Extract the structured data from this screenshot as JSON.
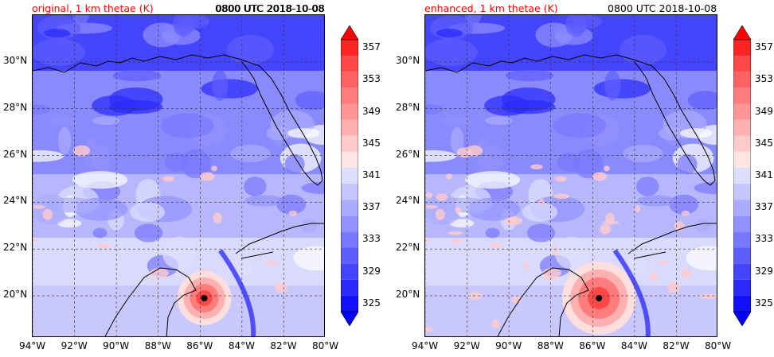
{
  "panels": [
    {
      "title": "original, 1 km thetae (K)",
      "time": "0800 UTC 2018-10-08",
      "storm_center": {
        "lon": -85.8,
        "lat": 19.9
      }
    },
    {
      "title": "enhanced, 1 km thetae (K)",
      "time": "0800 UTC 2018-10-08",
      "storm_center": {
        "lon": -85.7,
        "lat": 19.9
      }
    }
  ],
  "map_extent": {
    "lon_min": -94,
    "lon_max": -80,
    "lat_min": 18.2,
    "lat_max": 32.0
  },
  "lon_ticks": [
    "94°W",
    "92°W",
    "90°W",
    "88°W",
    "86°W",
    "84°W",
    "82°W",
    "80°W"
  ],
  "lon_values": [
    -94,
    -92,
    -90,
    -88,
    -86,
    -84,
    -82,
    -80
  ],
  "lat_ticks": [
    "20°N",
    "22°N",
    "24°N",
    "26°N",
    "28°N",
    "30°N"
  ],
  "lat_values": [
    20,
    22,
    24,
    26,
    28,
    30
  ],
  "colorbar": {
    "labels": [
      "325",
      "329",
      "333",
      "337",
      "341",
      "345",
      "349",
      "353",
      "357"
    ],
    "levels": [
      325,
      327,
      329,
      331,
      333,
      335,
      337,
      339,
      341,
      343,
      345,
      347,
      349,
      351,
      353,
      355,
      357,
      359
    ],
    "colors": [
      "#1010ff",
      "#2a2aff",
      "#4444ff",
      "#5e5eff",
      "#7777ff",
      "#9191ff",
      "#ababff",
      "#c5c5ff",
      "#dedeff",
      "#ffe4e4",
      "#ffcaca",
      "#ffb0b0",
      "#ff9696",
      "#ff7c7c",
      "#ff6262",
      "#ff4848",
      "#ff2424"
    ],
    "extend_min_color": "#0000ff",
    "extend_max_color": "#ff0000"
  }
}
